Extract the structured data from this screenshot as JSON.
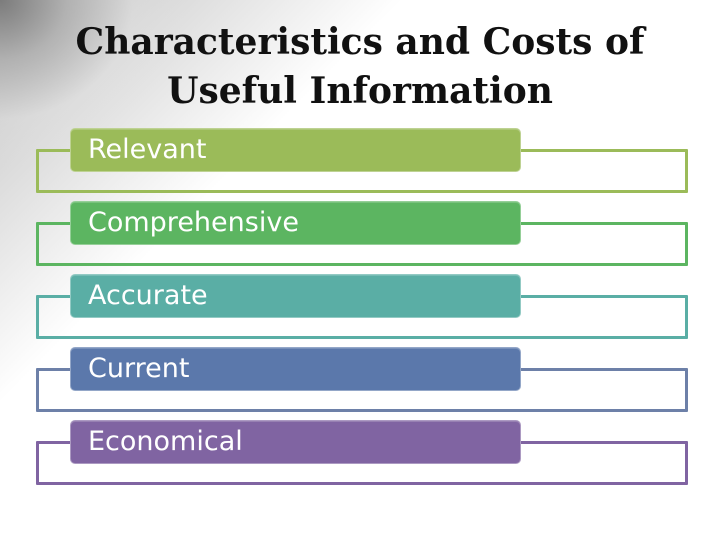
{
  "slide": {
    "title_line1": "Characteristics and Costs of",
    "title_line2": "Useful Information"
  },
  "items": [
    {
      "label": "Relevant",
      "color": "#9bbb59",
      "outline_color": "#9bbb59"
    },
    {
      "label": "Comprehensive",
      "color": "#5cb561",
      "outline_color": "#5cb561"
    },
    {
      "label": "Accurate",
      "color": "#5aaea5",
      "outline_color": "#5aaea5"
    },
    {
      "label": "Current",
      "color": "#5b78ab",
      "outline_color": "#6d80a8"
    },
    {
      "label": "Economical",
      "color": "#8064a2",
      "outline_color": "#8064a2"
    }
  ]
}
